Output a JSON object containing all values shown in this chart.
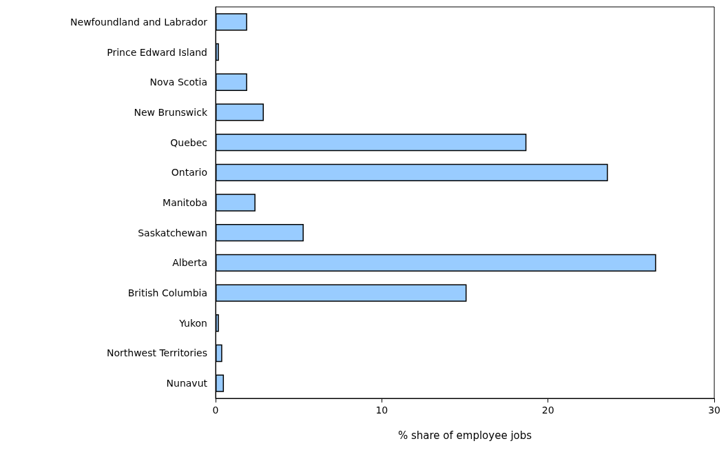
{
  "chart_data": {
    "type": "bar",
    "orientation": "horizontal",
    "xlabel": "% share of employee jobs",
    "categories": [
      "Newfoundland and Labrador",
      "Prince Edward Island",
      "Nova Scotia",
      "New Brunswick",
      "Quebec",
      "Ontario",
      "Manitoba",
      "Saskatchewan",
      "Alberta",
      "British Columbia",
      "Yukon",
      "Northwest Territories",
      "Nunavut"
    ],
    "values": [
      1.9,
      0.2,
      1.9,
      2.9,
      18.7,
      23.6,
      2.4,
      5.3,
      26.5,
      15.1,
      0.2,
      0.4,
      0.5
    ],
    "color": "#99ccff",
    "xlim": [
      0,
      30
    ],
    "xticks": [
      0,
      10,
      20,
      30
    ],
    "grid": false
  }
}
